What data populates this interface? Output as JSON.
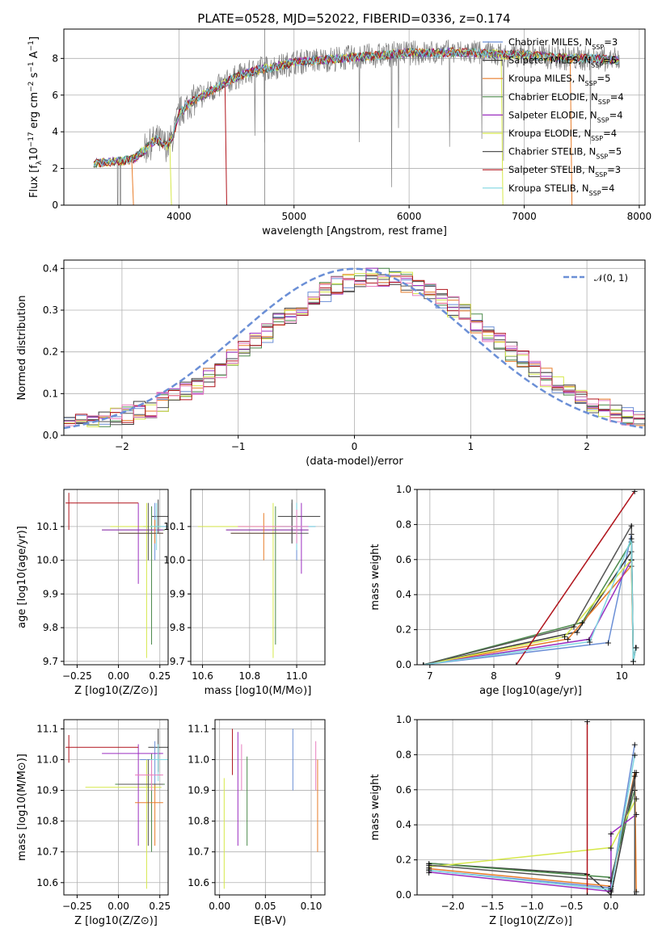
{
  "figure_title": "PLATE=0528, MJD=52022, FIBERID=0336, z=0.174",
  "colors": {
    "Chabrier MILES": "#6b8fd6",
    "Salpeter MILES": "#3a3a3a",
    "Kroupa MILES": "#e87d2a",
    "Chabrier ELODIE": "#4c8a4c",
    "Salpeter ELODIE": "#9b2fc0",
    "Kroupa ELODIE": "#d6e84a",
    "Chabrier STELIB": "#555555",
    "Salpeter STELIB": "#b0141c",
    "Kroupa STELIB": "#7fd6e0",
    "pink": "#e87fbf",
    "data": "#808080",
    "normal": "#6b8fd6"
  },
  "chart_data": [
    {
      "id": "spectrum",
      "type": "line",
      "title": "PLATE=0528, MJD=52022, FIBERID=0336, z=0.174",
      "xlabel": "wavelength [Angstrom, rest frame]",
      "ylabel": "Flux [f_λ 10^-17 erg cm^-2 s^-1 A^-1]",
      "xlim": [
        3000,
        8050
      ],
      "ylim": [
        0,
        9.6
      ],
      "xticks": [
        "4000",
        "5000",
        "6000",
        "7000",
        "8000"
      ],
      "yticks": [
        "0",
        "2",
        "4",
        "6",
        "8"
      ],
      "legend": [
        "Chabrier MILES, N_SSP=3",
        "Salpeter MILES, N_SSP=5",
        "Kroupa MILES, N_SSP=5",
        "Chabrier ELODIE, N_SSP=4",
        "Salpeter ELODIE, N_SSP=4",
        "Kroupa ELODIE, N_SSP=4",
        "Chabrier STELIB, N_SSP=5",
        "Salpeter STELIB, N_SSP=3",
        "Kroupa STELIB, N_SSP=4"
      ],
      "continuum": {
        "x": [
          3260,
          3400,
          3500,
          3600,
          3700,
          3800,
          3900,
          3950,
          4000,
          4100,
          4300,
          4500,
          4700,
          4900,
          5000,
          5200,
          5400,
          5600,
          5800,
          6000,
          6200,
          6400,
          6600,
          6800,
          7000,
          7200,
          7400,
          7600,
          7800
        ],
        "y": [
          2.3,
          2.35,
          2.4,
          2.5,
          3.0,
          3.6,
          3.2,
          3.8,
          5.0,
          5.6,
          6.3,
          7.0,
          7.4,
          7.6,
          7.8,
          7.9,
          8.0,
          8.1,
          8.2,
          8.3,
          8.3,
          8.35,
          8.3,
          8.2,
          8.2,
          8.1,
          8.0,
          8.0,
          7.9
        ]
      }
    },
    {
      "id": "residuals",
      "type": "step",
      "xlabel": "(data-model)/error",
      "ylabel": "Normed distribution",
      "xlim": [
        -2.5,
        2.5
      ],
      "ylim": [
        0,
        0.42
      ],
      "xticks": [
        "−2",
        "−1",
        "0",
        "1",
        "2"
      ],
      "yticks": [
        "0.0",
        "0.1",
        "0.2",
        "0.3",
        "0.4"
      ],
      "legend": [
        "𝒩(0, 1)"
      ]
    },
    {
      "id": "age-vs-Z",
      "type": "errorbar",
      "xlabel": "Z [log10(Z/Z⊙)]",
      "ylabel": "age [log10(age/yr)]",
      "xlim": [
        -0.33,
        0.3
      ],
      "ylim": [
        9.69,
        10.21
      ],
      "xticks": [
        "−0.25",
        "0.00",
        "0.25"
      ],
      "yticks": [
        "9.7",
        "9.8",
        "9.9",
        "10.0",
        "10.1"
      ]
    },
    {
      "id": "age-vs-mass",
      "type": "errorbar",
      "xlabel": "mass [log10(M/M⊙)]",
      "ylim": [
        9.69,
        10.21
      ],
      "xlim": [
        10.55,
        11.12
      ],
      "xticks": [
        "10.6",
        "10.8",
        "11.0"
      ],
      "yticks": [
        "9.7",
        "9.8",
        "9.9",
        "10.0",
        "10.1"
      ]
    },
    {
      "id": "weight-vs-age",
      "type": "line",
      "xlabel": "age [log10(age/yr)]",
      "ylabel": "mass weight",
      "xlim": [
        6.8,
        10.35
      ],
      "ylim": [
        0,
        1.0
      ],
      "xticks": [
        "7",
        "8",
        "9",
        "10"
      ],
      "yticks": [
        "0.0",
        "0.2",
        "0.4",
        "0.6",
        "0.8",
        "1.0"
      ]
    },
    {
      "id": "mass-vs-Z",
      "type": "errorbar",
      "xlabel": "Z [log10(Z/Z⊙)]",
      "ylabel": "mass [log10(M/M⊙)]",
      "xlim": [
        -0.33,
        0.3
      ],
      "ylim": [
        10.56,
        11.13
      ],
      "xticks": [
        "−0.25",
        "0.00",
        "0.25"
      ],
      "yticks": [
        "10.6",
        "10.7",
        "10.8",
        "10.9",
        "11.0",
        "11.1"
      ]
    },
    {
      "id": "mass-vs-ebv",
      "type": "errorbar",
      "xlabel": "E(B-V)",
      "xlim": [
        -0.005,
        0.115
      ],
      "ylim": [
        10.56,
        11.13
      ],
      "xticks": [
        "0.00",
        "0.05",
        "0.10"
      ],
      "yticks": [
        "10.6",
        "10.7",
        "10.8",
        "10.9",
        "11.0",
        "11.1"
      ]
    },
    {
      "id": "weight-vs-Z",
      "type": "line",
      "xlabel": "Z [log10(Z/Z⊙)]",
      "ylabel": "mass weight",
      "xlim": [
        -2.45,
        0.42
      ],
      "ylim": [
        0,
        1.0
      ],
      "xticks": [
        "−2.0",
        "−1.5",
        "−1.0",
        "−0.5",
        "0.0"
      ],
      "yticks": [
        "0.0",
        "0.2",
        "0.4",
        "0.6",
        "0.8",
        "1.0"
      ]
    }
  ]
}
